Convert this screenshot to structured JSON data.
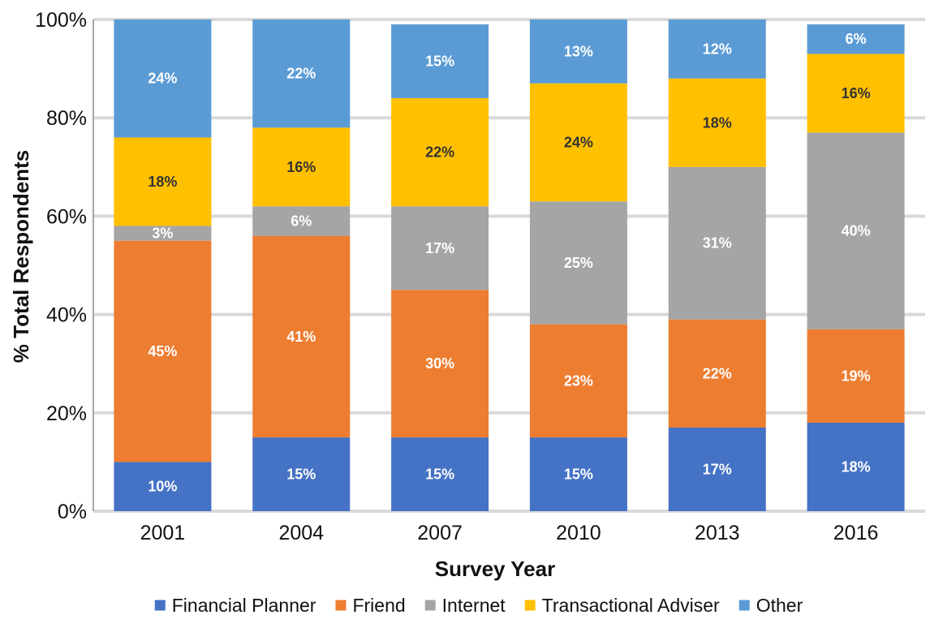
{
  "chart_data": {
    "type": "bar",
    "stacked": true,
    "title": "",
    "xlabel": "Survey Year",
    "ylabel": "% Total Respondents",
    "ylim": [
      0,
      100
    ],
    "yticks": [
      "0%",
      "20%",
      "40%",
      "60%",
      "80%",
      "100%"
    ],
    "grid": true,
    "legend_position": "bottom",
    "categories": [
      "2001",
      "2004",
      "2007",
      "2010",
      "2013",
      "2016"
    ],
    "series": [
      {
        "name": "Financial Planner",
        "color": "#4472C4",
        "label_color": "#ffffff",
        "values": [
          10,
          15,
          15,
          15,
          17,
          18
        ],
        "labels": [
          "10%",
          "15%",
          "15%",
          "15%",
          "17%",
          "18%"
        ]
      },
      {
        "name": "Friend",
        "color": "#ED7D31",
        "label_color": "#ffffff",
        "values": [
          45,
          41,
          30,
          23,
          22,
          19
        ],
        "labels": [
          "45%",
          "41%",
          "30%",
          "23%",
          "22%",
          "19%"
        ]
      },
      {
        "name": "Internet",
        "color": "#A5A5A5",
        "label_color": "#ffffff",
        "values": [
          3,
          6,
          17,
          25,
          31,
          40
        ],
        "labels": [
          "3%",
          "6%",
          "17%",
          "25%",
          "31%",
          "40%"
        ]
      },
      {
        "name": "Transactional Adviser",
        "color": "#FFC000",
        "label_color": "#333333",
        "values": [
          18,
          16,
          22,
          24,
          18,
          16
        ],
        "labels": [
          "18%",
          "16%",
          "22%",
          "24%",
          "18%",
          "16%"
        ]
      },
      {
        "name": "Other",
        "color": "#5B9BD5",
        "label_color": "#ffffff",
        "values": [
          24,
          22,
          15,
          13,
          12,
          6
        ],
        "labels": [
          "24%",
          "22%",
          "15%",
          "13%",
          "12%",
          "6%"
        ]
      }
    ]
  }
}
